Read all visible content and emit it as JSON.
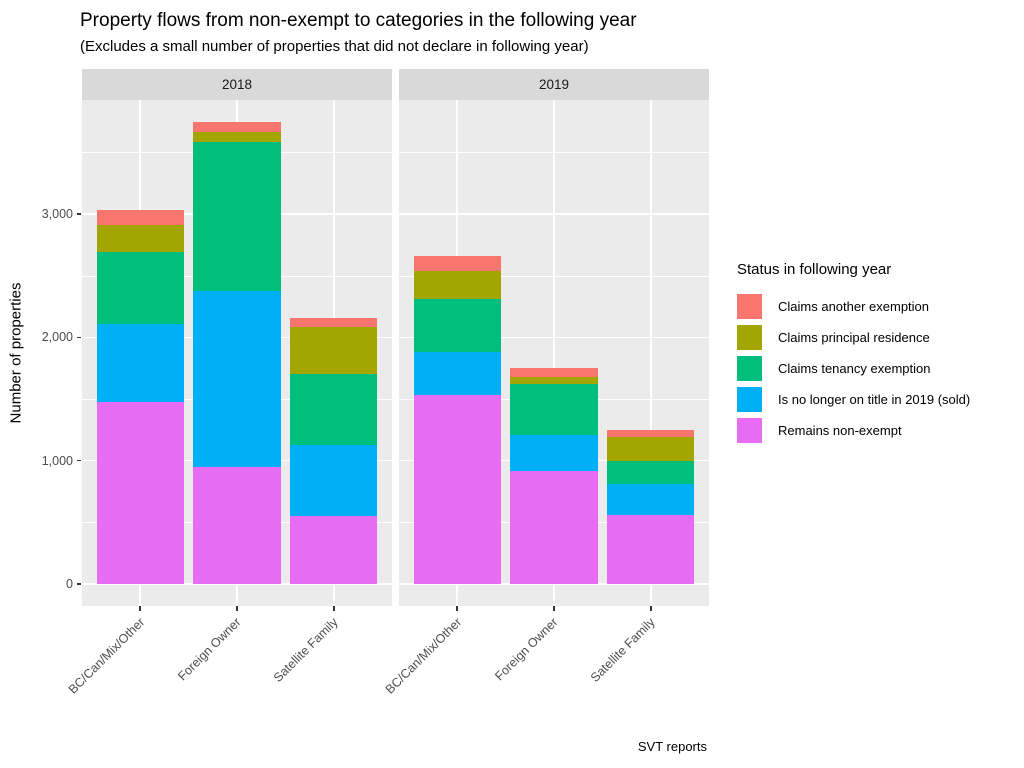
{
  "title": "Property flows from non-exempt to categories in the following year",
  "subtitle": "(Excludes a small number of properties that did not declare in following year)",
  "caption": "SVT reports",
  "legend": {
    "title": "Status in following year",
    "position": "right"
  },
  "chart_data": {
    "type": "bar",
    "stacked": true,
    "facets": [
      "2018",
      "2019"
    ],
    "categories": [
      "BC/Can/Mix/Other",
      "Foreign Owner",
      "Satellite Family"
    ],
    "ylabel": "Number of properties",
    "xlabel": "",
    "ylim": [
      -180,
      3925
    ],
    "y_ticks": [
      0,
      1000,
      2000,
      3000
    ],
    "y_tick_labels": [
      "0",
      "1,000",
      "2,000",
      "3,000"
    ],
    "y_minor_ticks": [
      500,
      1500,
      2500,
      3500
    ],
    "grid": true,
    "legend_order_top_to_bottom": [
      "Claims another exemption",
      "Claims principal residence",
      "Claims tenancy exemption",
      "Is no longer on title in 2019 (sold)",
      "Remains non-exempt"
    ],
    "stack_order_bottom_to_top": [
      "Remains non-exempt",
      "Is no longer on title in 2019 (sold)",
      "Claims tenancy exemption",
      "Claims principal residence",
      "Claims another exemption"
    ],
    "series": [
      {
        "name": "Claims another exemption",
        "color": "#F8766D",
        "values": {
          "2018": [
            120,
            80,
            75
          ],
          "2019": [
            120,
            75,
            55
          ]
        }
      },
      {
        "name": "Claims principal residence",
        "color": "#A3A500",
        "values": {
          "2018": [
            220,
            80,
            380
          ],
          "2019": [
            225,
            55,
            195
          ]
        }
      },
      {
        "name": "Claims tenancy exemption",
        "color": "#00BF7D",
        "values": {
          "2018": [
            590,
            1210,
            575
          ],
          "2019": [
            430,
            415,
            190
          ]
        }
      },
      {
        "name": "Is no longer on title in 2019 (sold)",
        "color": "#00B0F6",
        "values": {
          "2018": [
            625,
            1430,
            575
          ],
          "2019": [
            350,
            290,
            250
          ]
        }
      },
      {
        "name": "Remains non-exempt",
        "color": "#E76BF3",
        "values": {
          "2018": [
            1480,
            945,
            555
          ],
          "2019": [
            1535,
            920,
            560
          ]
        }
      }
    ],
    "totals": {
      "2018": [
        3035,
        3745,
        2160
      ],
      "2019": [
        2660,
        1755,
        1250
      ]
    },
    "theme": {
      "panel_background": "#EBEBEB",
      "strip_background": "#D9D9D9",
      "gridline_color": "#FFFFFF",
      "tick_text_color": "#4D4D4D",
      "strip_text_color": "#1A1A1A",
      "tick_mark_color": "#333333"
    }
  }
}
